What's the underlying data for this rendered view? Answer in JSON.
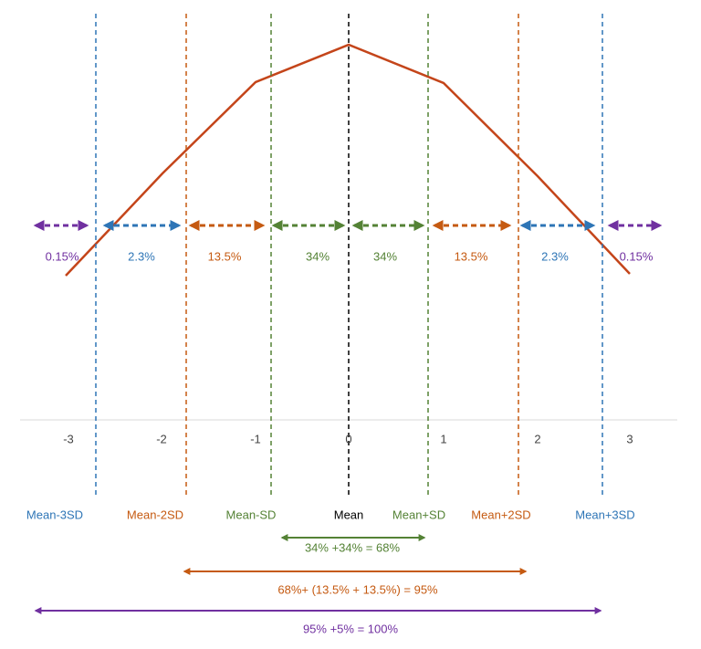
{
  "x_tick_labels": [
    "-3",
    "-2",
    "-1",
    "0",
    "1",
    "2",
    "3"
  ],
  "sd_labels": [
    "Mean-3SD",
    "Mean-2SD",
    "Mean-SD",
    "Mean",
    "Mean+SD",
    "Mean+2SD",
    "Mean+3SD"
  ],
  "region_labels": [
    "0.15%",
    "2.3%",
    "13.5%",
    "34%",
    "34%",
    "13.5%",
    "2.3%",
    "0.15%"
  ],
  "summaries": [
    "34% +34% = 68%",
    "68%+ (13.5% + 13.5%) = 95%",
    "95%  +5% = 100%"
  ]
}
